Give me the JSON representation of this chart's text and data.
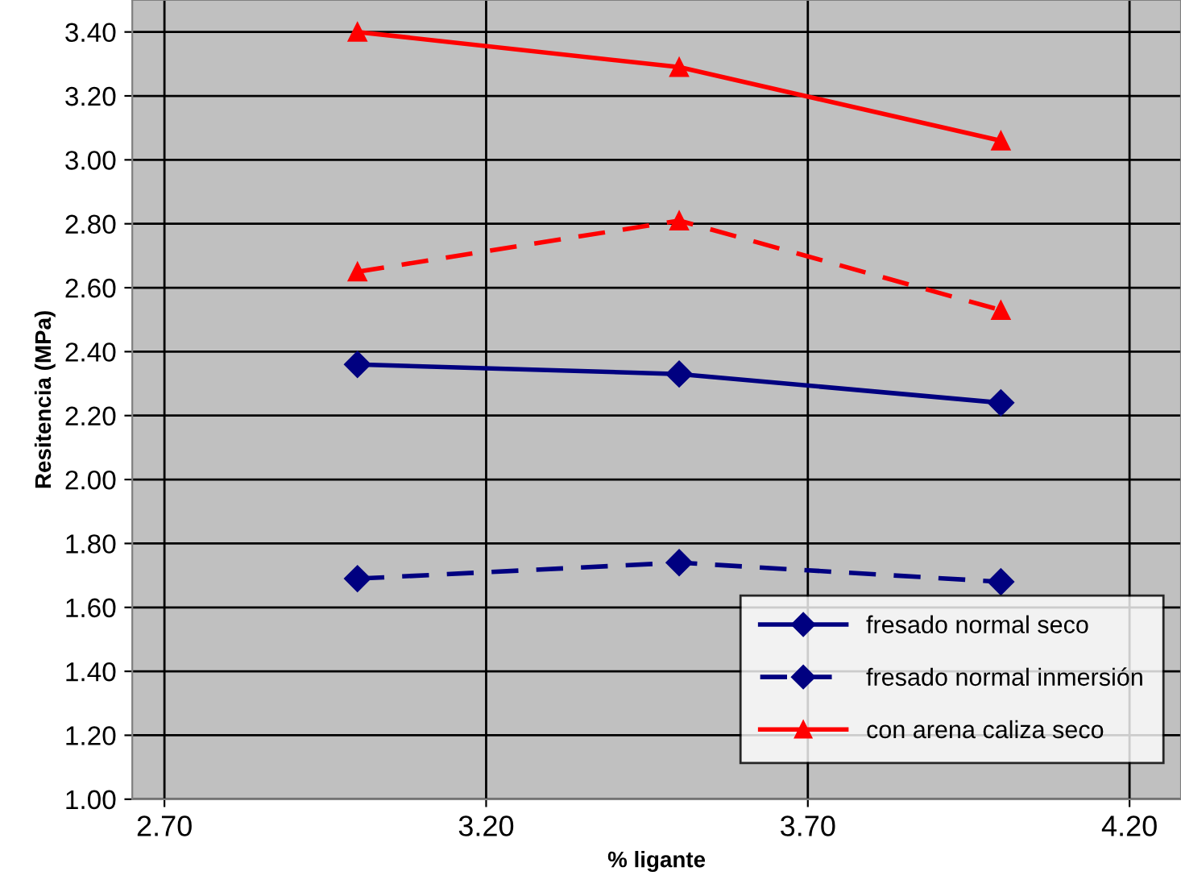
{
  "chart_data": {
    "type": "line",
    "xlabel": "% ligante",
    "ylabel": "Resitencia (MPa)",
    "x": [
      3.0,
      3.5,
      4.0
    ],
    "series": [
      {
        "name": "fresado normal seco",
        "color": "#000080",
        "values": [
          2.36,
          2.33,
          2.24
        ],
        "marker": "diamond",
        "line_style": "solid"
      },
      {
        "name": "fresado normal inmersión",
        "color": "#000080",
        "values": [
          1.69,
          1.74,
          1.68
        ],
        "marker": "diamond",
        "line_style": "dashed"
      },
      {
        "name": "con arena caliza seco",
        "color": "#ff0000",
        "values": [
          3.4,
          3.29,
          3.06
        ],
        "marker": "triangle",
        "line_style": "solid"
      },
      {
        "color": "#ff0000",
        "values": [
          2.65,
          2.81,
          2.53
        ],
        "marker": "triangle",
        "line_style": "dashed"
      }
    ],
    "xlim": [
      2.65,
      4.28
    ],
    "xticks": [
      {
        "value": 2.7,
        "label": "2.70"
      },
      {
        "value": 3.2,
        "label": "3.20"
      },
      {
        "value": 3.7,
        "label": "3.70"
      },
      {
        "value": 4.2,
        "label": "4.20"
      }
    ],
    "ylim": [
      1.0,
      3.5
    ],
    "yticks": [
      {
        "value": 1.0,
        "label": "1.00"
      },
      {
        "value": 1.2,
        "label": "1.20"
      },
      {
        "value": 1.4,
        "label": "1.40"
      },
      {
        "value": 1.6,
        "label": "1.60"
      },
      {
        "value": 1.8,
        "label": "1.80"
      },
      {
        "value": 2.0,
        "label": "2.00"
      },
      {
        "value": 2.2,
        "label": "2.20"
      },
      {
        "value": 2.4,
        "label": "2.40"
      },
      {
        "value": 2.6,
        "label": "2.60"
      },
      {
        "value": 2.8,
        "label": "2.80"
      },
      {
        "value": 3.0,
        "label": "3.00"
      },
      {
        "value": 3.2,
        "label": "3.20"
      },
      {
        "value": 3.4,
        "label": "3.40"
      }
    ],
    "grid": true,
    "legend": "bottom right"
  }
}
